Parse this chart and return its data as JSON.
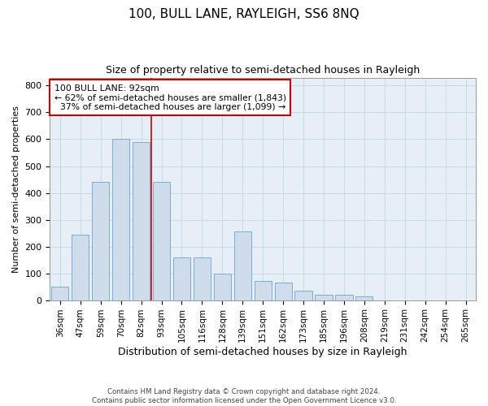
{
  "title": "100, BULL LANE, RAYLEIGH, SS6 8NQ",
  "subtitle": "Size of property relative to semi-detached houses in Rayleigh",
  "xlabel": "Distribution of semi-detached houses by size in Rayleigh",
  "ylabel": "Number of semi-detached properties",
  "categories": [
    "36sqm",
    "47sqm",
    "59sqm",
    "70sqm",
    "82sqm",
    "93sqm",
    "105sqm",
    "116sqm",
    "128sqm",
    "139sqm",
    "151sqm",
    "162sqm",
    "173sqm",
    "185sqm",
    "196sqm",
    "208sqm",
    "219sqm",
    "231sqm",
    "242sqm",
    "254sqm",
    "265sqm"
  ],
  "values": [
    50,
    245,
    440,
    600,
    590,
    440,
    160,
    160,
    100,
    255,
    70,
    65,
    35,
    20,
    20,
    15,
    0,
    0,
    0,
    0,
    0
  ],
  "bar_color": "#cfdcec",
  "bar_edge_color": "#7aadd4",
  "annotation_text": "100 BULL LANE: 92sqm\n← 62% of semi-detached houses are smaller (1,843)\n  37% of semi-detached houses are larger (1,099) →",
  "annotation_box_color": "#ffffff",
  "annotation_box_edge": "#cc0000",
  "vline_color": "#cc0000",
  "ylim": [
    0,
    830
  ],
  "yticks": [
    0,
    100,
    200,
    300,
    400,
    500,
    600,
    700,
    800
  ],
  "grid_color": "#c8d4e0",
  "bg_color": "#e6eef6",
  "footer": "Contains HM Land Registry data © Crown copyright and database right 2024.\nContains public sector information licensed under the Open Government Licence v3.0.",
  "title_fontsize": 11,
  "subtitle_fontsize": 9,
  "xlabel_fontsize": 9,
  "ylabel_fontsize": 8
}
